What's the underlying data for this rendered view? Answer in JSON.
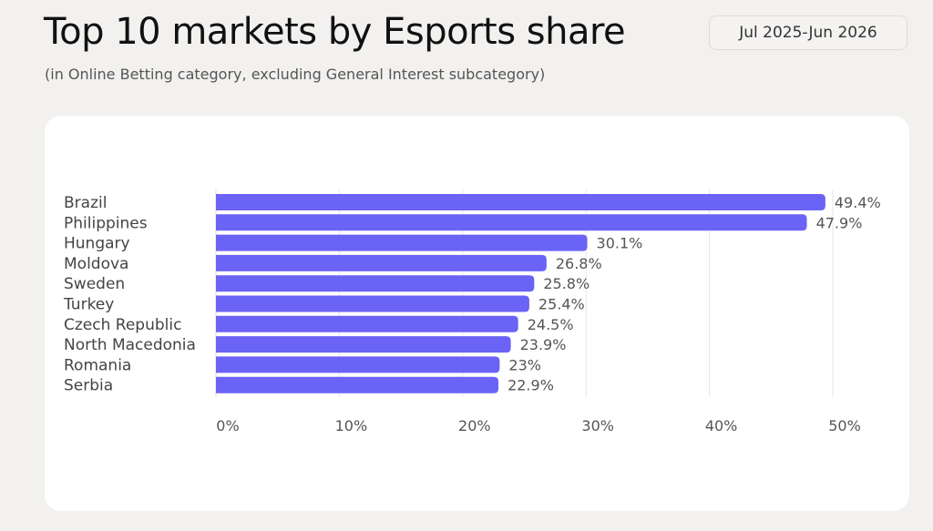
{
  "header": {
    "title": "Top 10 markets by Esports share",
    "subtitle": "(in Online Betting category, excluding General Interest subcategory)",
    "date_range": "Jul 2025-Jun 2026"
  },
  "colors": {
    "bar": "#6b63f5",
    "grid": "#e6e6e6",
    "label": "#444444",
    "value_label": "#555555",
    "tick": "#555555"
  },
  "chart_data": {
    "type": "bar",
    "orientation": "horizontal",
    "title": "Top 10 markets by Esports share",
    "subtitle": "(in Online Betting category, excluding General Interest subcategory)",
    "categories": [
      "Brazil",
      "Philippines",
      "Hungary",
      "Moldova",
      "Sweden",
      "Turkey",
      "Czech Republic",
      "North Macedonia",
      "Romania",
      "Serbia"
    ],
    "values": [
      49.4,
      47.9,
      30.1,
      26.8,
      25.8,
      25.4,
      24.5,
      23.9,
      23,
      22.9
    ],
    "value_labels": [
      "49.4%",
      "47.9%",
      "30.1%",
      "26.8%",
      "25.8%",
      "25.4%",
      "24.5%",
      "23.9%",
      "23%",
      "22.9%"
    ],
    "xlim": [
      0,
      50
    ],
    "x_ticks": [
      0,
      10,
      20,
      30,
      40,
      50
    ],
    "x_tick_labels": [
      "0%",
      "10%",
      "20%",
      "30%",
      "40%",
      "50%"
    ],
    "xlabel": "",
    "ylabel": "",
    "grid": true,
    "legend": "none"
  }
}
